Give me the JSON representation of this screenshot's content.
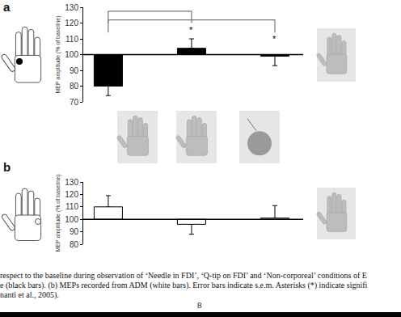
{
  "chart_data": [
    {
      "type": "bar",
      "title": "a",
      "y_label": "MEP amplitude (% of baseline)",
      "categories": [
        null,
        null,
        null
      ],
      "values": [
        80,
        104,
        99
      ],
      "errors": [
        6,
        6,
        6
      ],
      "color": "#000000",
      "baseline": 100,
      "ylim": [
        70,
        130
      ],
      "yticks": [
        70,
        80,
        90,
        100,
        110,
        120,
        130
      ],
      "grid": false,
      "tick_labels": "y",
      "significance": [
        {
          "from": 0,
          "to": 1,
          "height": 127.5,
          "end": 120,
          "label": "*"
        },
        {
          "from": 0,
          "to": 2,
          "height": 122,
          "end": 114,
          "label": "*"
        }
      ]
    },
    {
      "type": "bar",
      "title": "b",
      "y_label": "MEP amplitude (% of baseline)",
      "categories": [
        null,
        null,
        null
      ],
      "values": [
        110,
        96,
        101
      ],
      "errors": [
        9,
        8,
        10
      ],
      "color": "#ffffff",
      "baseline": 100,
      "ylim": [
        80,
        130
      ],
      "yticks": [
        80,
        90,
        100,
        110,
        120,
        130
      ],
      "grid": false,
      "tick_labels": "y",
      "significance": []
    }
  ],
  "caption": {
    "lines": [
      "respect to the baseline during observation of ‘Needle in FDI’, ‘Q-tip on FDI’ and ‘Non-corporeal’ conditions of E",
      "e (black bars). (b) MEPs recorded from ADM (white bars). Error bars indicate s.e.m. Asterisks (*) indicate signifi",
      "nanti et al., 2005)."
    ],
    "page_number": "8"
  }
}
